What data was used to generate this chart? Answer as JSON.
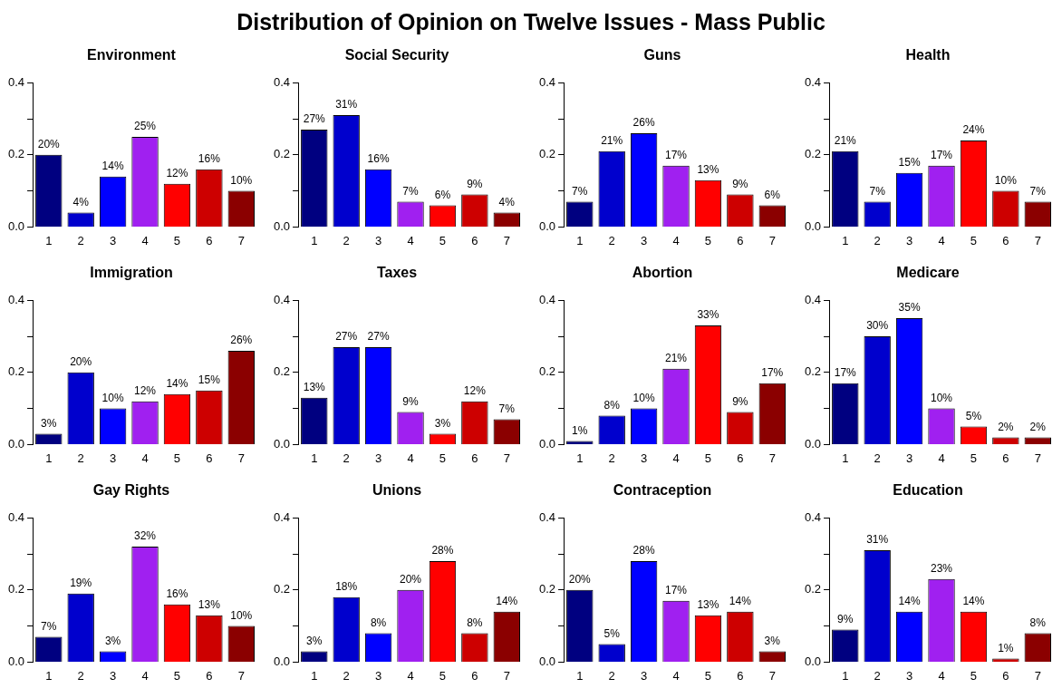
{
  "chart_data": [
    {
      "type": "other",
      "title": "Distribution of Opinion on Twelve Issues - Mass Public"
    },
    {
      "type": "bar",
      "title": "Environment",
      "categories": [
        "1",
        "2",
        "3",
        "4",
        "5",
        "6",
        "7"
      ],
      "values": [
        0.2,
        0.04,
        0.14,
        0.25,
        0.12,
        0.16,
        0.1
      ],
      "value_labels": [
        "20%",
        "4%",
        "14%",
        "25%",
        "12%",
        "16%",
        "10%"
      ],
      "colors": [
        "#000080",
        "#0000cd",
        "#0000ff",
        "#a020f0",
        "#ff0000",
        "#cd0000",
        "#8b0000"
      ],
      "ylim": [
        0,
        0.4
      ],
      "yticks": [
        {
          "value": 0,
          "label": "0.0"
        },
        {
          "value": 0.1,
          "label": null
        },
        {
          "value": 0.2,
          "label": "0.2"
        },
        {
          "value": 0.3,
          "label": null
        },
        {
          "value": 0.4,
          "label": "0.4"
        }
      ]
    },
    {
      "type": "bar",
      "title": "Social Security",
      "categories": [
        "1",
        "2",
        "3",
        "4",
        "5",
        "6",
        "7"
      ],
      "values": [
        0.27,
        0.31,
        0.16,
        0.07,
        0.06,
        0.09,
        0.04
      ],
      "value_labels": [
        "27%",
        "31%",
        "16%",
        "7%",
        "6%",
        "9%",
        "4%"
      ],
      "colors": [
        "#000080",
        "#0000cd",
        "#0000ff",
        "#a020f0",
        "#ff0000",
        "#cd0000",
        "#8b0000"
      ],
      "ylim": [
        0,
        0.4
      ],
      "yticks": [
        {
          "value": 0,
          "label": "0.0"
        },
        {
          "value": 0.1,
          "label": null
        },
        {
          "value": 0.2,
          "label": "0.2"
        },
        {
          "value": 0.3,
          "label": null
        },
        {
          "value": 0.4,
          "label": "0.4"
        }
      ]
    },
    {
      "type": "bar",
      "title": "Guns",
      "categories": [
        "1",
        "2",
        "3",
        "4",
        "5",
        "6",
        "7"
      ],
      "values": [
        0.07,
        0.21,
        0.26,
        0.17,
        0.13,
        0.09,
        0.06
      ],
      "value_labels": [
        "7%",
        "21%",
        "26%",
        "17%",
        "13%",
        "9%",
        "6%"
      ],
      "colors": [
        "#000080",
        "#0000cd",
        "#0000ff",
        "#a020f0",
        "#ff0000",
        "#cd0000",
        "#8b0000"
      ],
      "ylim": [
        0,
        0.4
      ],
      "yticks": [
        {
          "value": 0,
          "label": "0.0"
        },
        {
          "value": 0.1,
          "label": null
        },
        {
          "value": 0.2,
          "label": "0.2"
        },
        {
          "value": 0.3,
          "label": null
        },
        {
          "value": 0.4,
          "label": "0.4"
        }
      ]
    },
    {
      "type": "bar",
      "title": "Health",
      "categories": [
        "1",
        "2",
        "3",
        "4",
        "5",
        "6",
        "7"
      ],
      "values": [
        0.21,
        0.07,
        0.15,
        0.17,
        0.24,
        0.1,
        0.07
      ],
      "value_labels": [
        "21%",
        "7%",
        "15%",
        "17%",
        "24%",
        "10%",
        "7%"
      ],
      "colors": [
        "#000080",
        "#0000cd",
        "#0000ff",
        "#a020f0",
        "#ff0000",
        "#cd0000",
        "#8b0000"
      ],
      "ylim": [
        0,
        0.4
      ],
      "yticks": [
        {
          "value": 0,
          "label": "0.0"
        },
        {
          "value": 0.1,
          "label": null
        },
        {
          "value": 0.2,
          "label": "0.2"
        },
        {
          "value": 0.3,
          "label": null
        },
        {
          "value": 0.4,
          "label": "0.4"
        }
      ]
    },
    {
      "type": "bar",
      "title": "Immigration",
      "categories": [
        "1",
        "2",
        "3",
        "4",
        "5",
        "6",
        "7"
      ],
      "values": [
        0.03,
        0.2,
        0.1,
        0.12,
        0.14,
        0.15,
        0.26
      ],
      "value_labels": [
        "3%",
        "20%",
        "10%",
        "12%",
        "14%",
        "15%",
        "26%"
      ],
      "colors": [
        "#000080",
        "#0000cd",
        "#0000ff",
        "#a020f0",
        "#ff0000",
        "#cd0000",
        "#8b0000"
      ],
      "ylim": [
        0,
        0.4
      ],
      "yticks": [
        {
          "value": 0,
          "label": "0.0"
        },
        {
          "value": 0.1,
          "label": null
        },
        {
          "value": 0.2,
          "label": "0.2"
        },
        {
          "value": 0.3,
          "label": null
        },
        {
          "value": 0.4,
          "label": "0.4"
        }
      ]
    },
    {
      "type": "bar",
      "title": "Taxes",
      "categories": [
        "1",
        "2",
        "3",
        "4",
        "5",
        "6",
        "7"
      ],
      "values": [
        0.13,
        0.27,
        0.27,
        0.09,
        0.03,
        0.12,
        0.07
      ],
      "value_labels": [
        "13%",
        "27%",
        "27%",
        "9%",
        "3%",
        "12%",
        "7%"
      ],
      "colors": [
        "#000080",
        "#0000cd",
        "#0000ff",
        "#a020f0",
        "#ff0000",
        "#cd0000",
        "#8b0000"
      ],
      "ylim": [
        0,
        0.4
      ],
      "yticks": [
        {
          "value": 0,
          "label": "0.0"
        },
        {
          "value": 0.1,
          "label": null
        },
        {
          "value": 0.2,
          "label": "0.2"
        },
        {
          "value": 0.3,
          "label": null
        },
        {
          "value": 0.4,
          "label": "0.4"
        }
      ]
    },
    {
      "type": "bar",
      "title": "Abortion",
      "categories": [
        "1",
        "2",
        "3",
        "4",
        "5",
        "6",
        "7"
      ],
      "values": [
        0.01,
        0.08,
        0.1,
        0.21,
        0.33,
        0.09,
        0.17
      ],
      "value_labels": [
        "1%",
        "8%",
        "10%",
        "21%",
        "33%",
        "9%",
        "17%"
      ],
      "colors": [
        "#000080",
        "#0000cd",
        "#0000ff",
        "#a020f0",
        "#ff0000",
        "#cd0000",
        "#8b0000"
      ],
      "ylim": [
        0,
        0.4
      ],
      "yticks": [
        {
          "value": 0,
          "label": "0.0"
        },
        {
          "value": 0.1,
          "label": null
        },
        {
          "value": 0.2,
          "label": "0.2"
        },
        {
          "value": 0.3,
          "label": null
        },
        {
          "value": 0.4,
          "label": "0.4"
        }
      ]
    },
    {
      "type": "bar",
      "title": "Medicare",
      "categories": [
        "1",
        "2",
        "3",
        "4",
        "5",
        "6",
        "7"
      ],
      "values": [
        0.17,
        0.3,
        0.35,
        0.1,
        0.05,
        0.02,
        0.02
      ],
      "value_labels": [
        "17%",
        "30%",
        "35%",
        "10%",
        "5%",
        "2%",
        "2%"
      ],
      "colors": [
        "#000080",
        "#0000cd",
        "#0000ff",
        "#a020f0",
        "#ff0000",
        "#cd0000",
        "#8b0000"
      ],
      "ylim": [
        0,
        0.4
      ],
      "yticks": [
        {
          "value": 0,
          "label": "0.0"
        },
        {
          "value": 0.1,
          "label": null
        },
        {
          "value": 0.2,
          "label": "0.2"
        },
        {
          "value": 0.3,
          "label": null
        },
        {
          "value": 0.4,
          "label": "0.4"
        }
      ]
    },
    {
      "type": "bar",
      "title": "Gay Rights",
      "categories": [
        "1",
        "2",
        "3",
        "4",
        "5",
        "6",
        "7"
      ],
      "values": [
        0.07,
        0.19,
        0.03,
        0.32,
        0.16,
        0.13,
        0.1
      ],
      "value_labels": [
        "7%",
        "19%",
        "3%",
        "32%",
        "16%",
        "13%",
        "10%"
      ],
      "colors": [
        "#000080",
        "#0000cd",
        "#0000ff",
        "#a020f0",
        "#ff0000",
        "#cd0000",
        "#8b0000"
      ],
      "ylim": [
        0,
        0.4
      ],
      "yticks": [
        {
          "value": 0,
          "label": "0.0"
        },
        {
          "value": 0.1,
          "label": null
        },
        {
          "value": 0.2,
          "label": "0.2"
        },
        {
          "value": 0.3,
          "label": null
        },
        {
          "value": 0.4,
          "label": "0.4"
        }
      ]
    },
    {
      "type": "bar",
      "title": "Unions",
      "categories": [
        "1",
        "2",
        "3",
        "4",
        "5",
        "6",
        "7"
      ],
      "values": [
        0.03,
        0.18,
        0.08,
        0.2,
        0.28,
        0.08,
        0.14
      ],
      "value_labels": [
        "3%",
        "18%",
        "8%",
        "20%",
        "28%",
        "8%",
        "14%"
      ],
      "colors": [
        "#000080",
        "#0000cd",
        "#0000ff",
        "#a020f0",
        "#ff0000",
        "#cd0000",
        "#8b0000"
      ],
      "ylim": [
        0,
        0.4
      ],
      "yticks": [
        {
          "value": 0,
          "label": "0.0"
        },
        {
          "value": 0.1,
          "label": null
        },
        {
          "value": 0.2,
          "label": "0.2"
        },
        {
          "value": 0.3,
          "label": null
        },
        {
          "value": 0.4,
          "label": "0.4"
        }
      ]
    },
    {
      "type": "bar",
      "title": "Contraception",
      "categories": [
        "1",
        "2",
        "3",
        "4",
        "5",
        "6",
        "7"
      ],
      "values": [
        0.2,
        0.05,
        0.28,
        0.17,
        0.13,
        0.14,
        0.03
      ],
      "value_labels": [
        "20%",
        "5%",
        "28%",
        "17%",
        "13%",
        "14%",
        "3%"
      ],
      "colors": [
        "#000080",
        "#0000cd",
        "#0000ff",
        "#a020f0",
        "#ff0000",
        "#cd0000",
        "#8b0000"
      ],
      "ylim": [
        0,
        0.4
      ],
      "yticks": [
        {
          "value": 0,
          "label": "0.0"
        },
        {
          "value": 0.1,
          "label": null
        },
        {
          "value": 0.2,
          "label": "0.2"
        },
        {
          "value": 0.3,
          "label": null
        },
        {
          "value": 0.4,
          "label": "0.4"
        }
      ]
    },
    {
      "type": "bar",
      "title": "Education",
      "categories": [
        "1",
        "2",
        "3",
        "4",
        "5",
        "6",
        "7"
      ],
      "values": [
        0.09,
        0.31,
        0.14,
        0.23,
        0.14,
        0.01,
        0.08
      ],
      "value_labels": [
        "9%",
        "31%",
        "14%",
        "23%",
        "14%",
        "1%",
        "8%"
      ],
      "colors": [
        "#000080",
        "#0000cd",
        "#0000ff",
        "#a020f0",
        "#ff0000",
        "#cd0000",
        "#8b0000"
      ],
      "ylim": [
        0,
        0.4
      ],
      "yticks": [
        {
          "value": 0,
          "label": "0.0"
        },
        {
          "value": 0.1,
          "label": null
        },
        {
          "value": 0.2,
          "label": "0.2"
        },
        {
          "value": 0.3,
          "label": null
        },
        {
          "value": 0.4,
          "label": "0.4"
        }
      ]
    }
  ]
}
